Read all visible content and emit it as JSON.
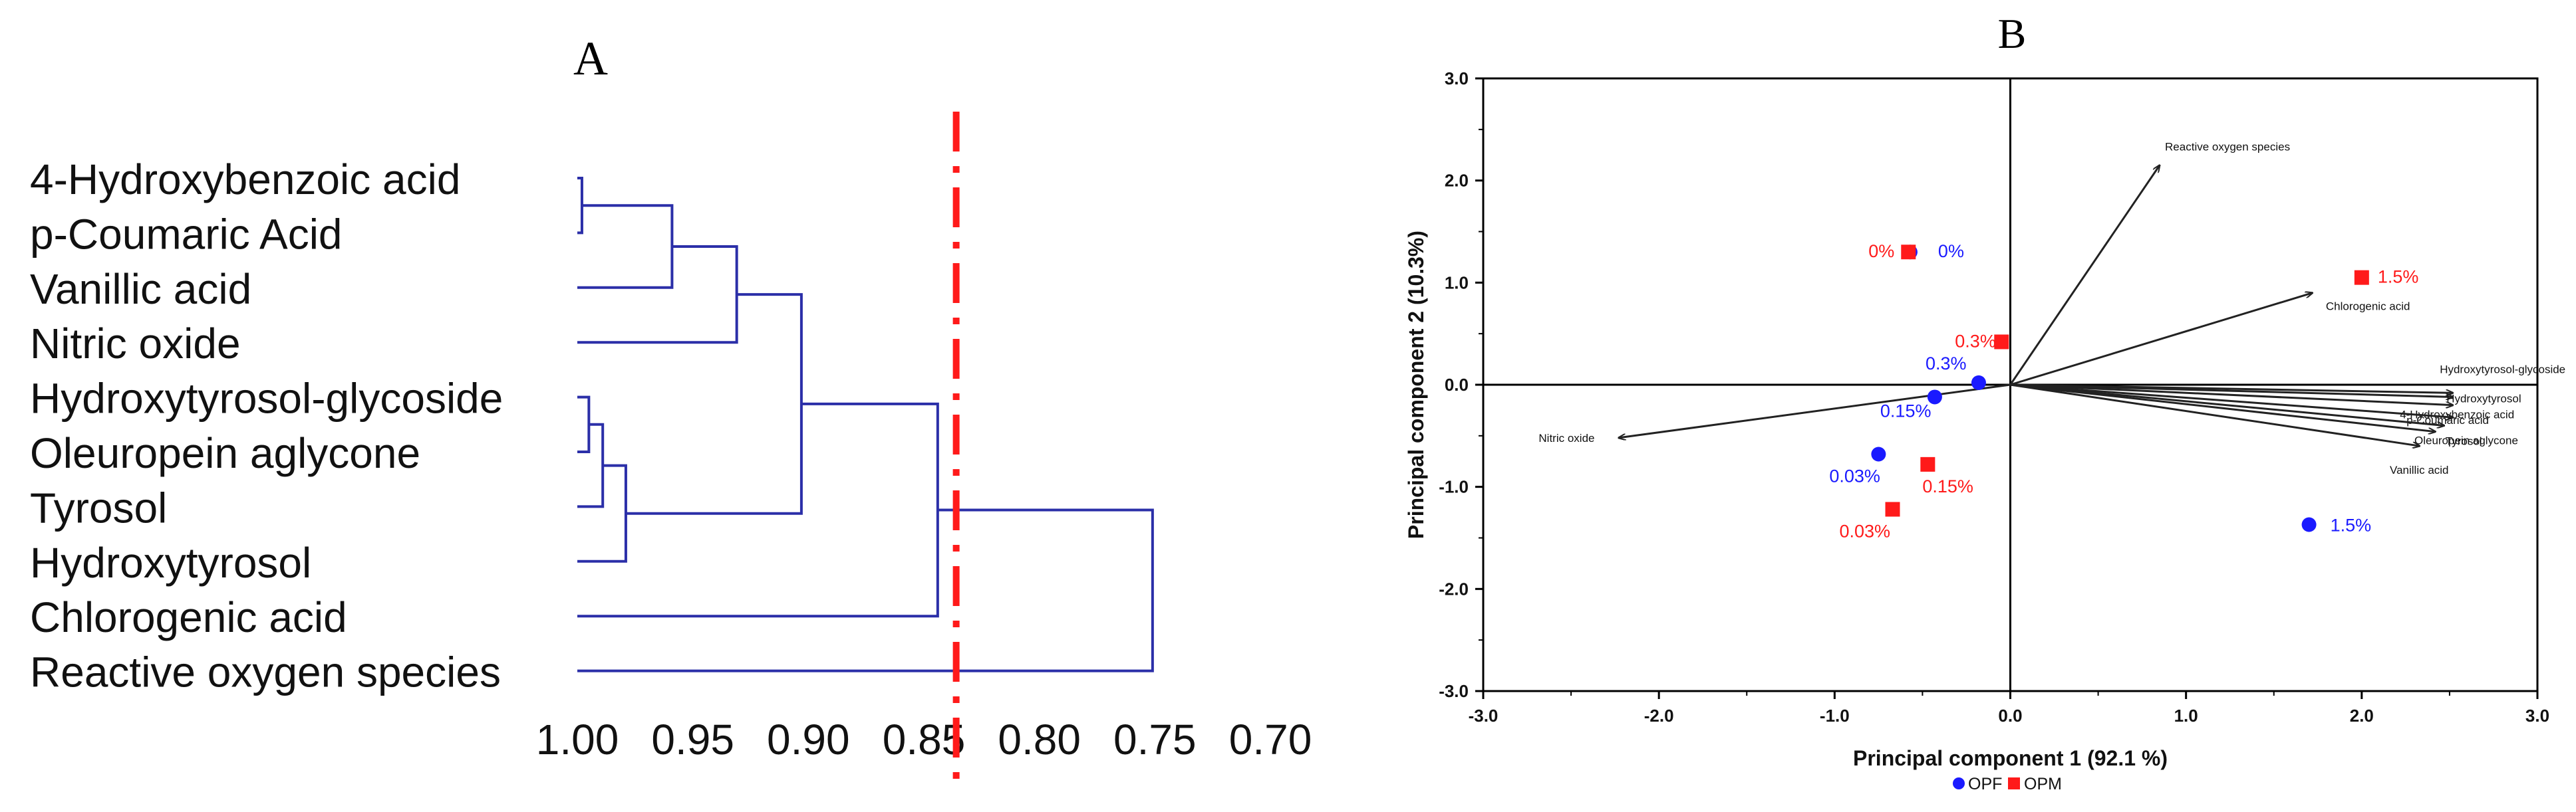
{
  "panels": {
    "a_label": "A",
    "b_label": "B"
  },
  "colors": {
    "dendro_line": "#2b2fa8",
    "cutoff": "#ff1a1a",
    "opf": "#1a1aff",
    "opm": "#ff1a1a",
    "arrow": "#222222"
  },
  "chart_data": [
    {
      "type": "dendrogram",
      "panel": "A",
      "leaves": [
        "4-Hydroxybenzoic acid",
        "p-Coumaric Acid",
        "Vanillic acid",
        "Nitric oxide",
        "Hydroxytyrosol-glycoside",
        "Oleuropein aglycone",
        "Tyrosol",
        "Hydroxytyrosol",
        "Chlorogenic acid",
        "Reactive oxygen species"
      ],
      "x_ticks": [
        "1.00",
        "0.95",
        "0.90",
        "0.85",
        "0.80",
        "0.75",
        "0.70"
      ],
      "xlim": [
        1.0,
        0.7
      ],
      "merges": [
        {
          "left": 0,
          "right": 1,
          "height": 0.998
        },
        {
          "left": 10,
          "right": 2,
          "height": 0.959
        },
        {
          "left": 11,
          "right": 3,
          "height": 0.931
        },
        {
          "left": 4,
          "right": 5,
          "height": 0.995
        },
        {
          "left": 13,
          "right": 6,
          "height": 0.989
        },
        {
          "left": 14,
          "right": 7,
          "height": 0.979
        },
        {
          "left": 12,
          "right": 15,
          "height": 0.903
        },
        {
          "left": 16,
          "right": 8,
          "height": 0.844
        },
        {
          "left": 17,
          "right": 9,
          "height": 0.751
        }
      ],
      "cutoff": 0.836
    },
    {
      "type": "biplot",
      "panel": "B",
      "xlabel": "Principal component 1 (92.1 %)",
      "ylabel": "Principal component 2 (10.3%)",
      "xlim": [
        -3.0,
        3.0
      ],
      "ylim": [
        -3.0,
        3.0
      ],
      "x_ticks": [
        "-3.0",
        "-2.0",
        "-1.0",
        "0.0",
        "1.0",
        "2.0",
        "3.0"
      ],
      "y_ticks": [
        "3.0",
        "2.0",
        "1.0",
        "0.0",
        "-1.0",
        "-2.0",
        "-3.0"
      ],
      "legend": {
        "placement": "bottom-center",
        "items": [
          "OPF",
          "OPM"
        ]
      },
      "series": [
        {
          "name": "OPF",
          "marker": "circle",
          "points": [
            {
              "x": -0.57,
              "y": 1.3,
              "label": "0%"
            },
            {
              "x": -0.18,
              "y": 0.02,
              "label": "0.3%"
            },
            {
              "x": -0.43,
              "y": -0.12,
              "label": "0.15%"
            },
            {
              "x": -0.75,
              "y": -0.68,
              "label": "0.03%"
            },
            {
              "x": 1.7,
              "y": -1.37,
              "label": "1.5%"
            }
          ]
        },
        {
          "name": "OPM",
          "marker": "square",
          "points": [
            {
              "x": -0.58,
              "y": 1.3,
              "label": "0%"
            },
            {
              "x": 2.0,
              "y": 1.05,
              "label": "1.5%"
            },
            {
              "x": -0.05,
              "y": 0.42,
              "label": "0.3%"
            },
            {
              "x": -0.47,
              "y": -0.78,
              "label": "0.15%"
            },
            {
              "x": -0.67,
              "y": -1.22,
              "label": "0.03%"
            }
          ]
        }
      ],
      "vectors": [
        {
          "label": "Reactive oxygen species",
          "x": 0.85,
          "y": 2.15
        },
        {
          "label": "Chlorogenic acid",
          "x": 1.72,
          "y": 0.9
        },
        {
          "label": "Hydroxytyrosol-glycoside",
          "x": 2.52,
          "y": -0.08
        },
        {
          "label": "Hydroxytyrosol",
          "x": 2.52,
          "y": -0.12
        },
        {
          "label": "4-Hydroxybenzoic acid",
          "x": 2.52,
          "y": -0.2
        },
        {
          "label": "p-Coumaric acid",
          "x": 2.52,
          "y": -0.32
        },
        {
          "label": "Oleuropein aglycone",
          "x": 2.47,
          "y": -0.4
        },
        {
          "label": "Tyrosol",
          "x": 2.42,
          "y": -0.46
        },
        {
          "label": "Vanillic acid",
          "x": 2.33,
          "y": -0.6
        },
        {
          "label": "Nitric oxide",
          "x": -2.23,
          "y": -0.52
        }
      ]
    }
  ]
}
